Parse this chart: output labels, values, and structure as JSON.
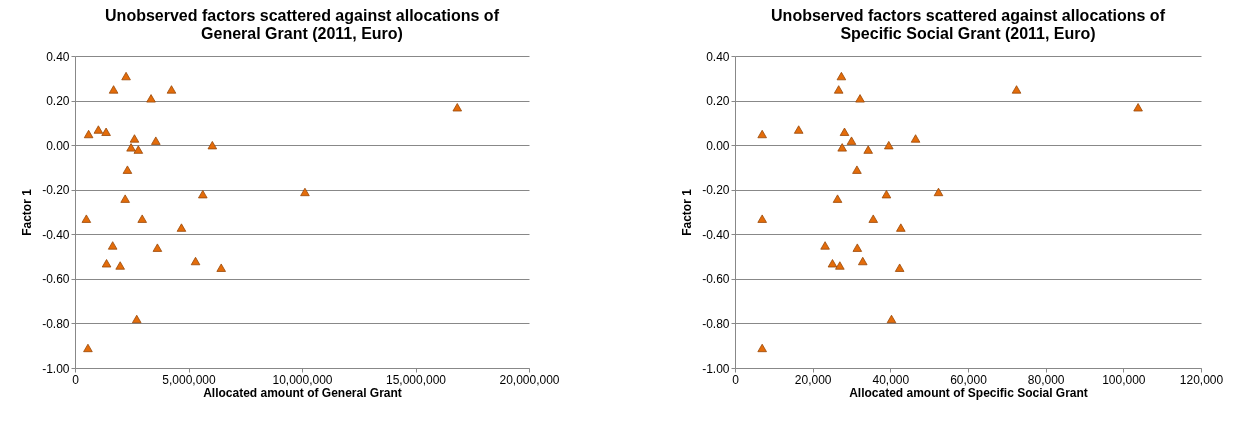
{
  "chart_data": [
    {
      "type": "scatter",
      "title": "Unobserved factors scattered against allocations of General Grant (2011, Euro)",
      "xlabel": "Allocated amount of General Grant",
      "ylabel": "Factor 1",
      "marker": "triangle",
      "grid": "y",
      "xlim": [
        0,
        20000000
      ],
      "xticks": [
        0,
        {
          "value": 5000000,
          "label": "5,000,000"
        },
        {
          "value": 10000000,
          "label": "10,000,000"
        },
        {
          "value": 15000000,
          "label": "15,000,000"
        },
        {
          "value": 20000000,
          "label": "20,000,000"
        }
      ],
      "ylim": [
        -1,
        0.4
      ],
      "yticks": [
        {
          "value": -1,
          "label": "-1.00"
        },
        {
          "value": -0.8,
          "label": "-0.80"
        },
        {
          "value": -0.6,
          "label": "-0.60"
        },
        {
          "value": -0.4,
          "label": "-0.40"
        },
        {
          "value": -0.2,
          "label": "-0.20"
        },
        {
          "value": 0,
          "label": "0.00"
        },
        {
          "value": 0.2,
          "label": "0.20"
        },
        {
          "value": 0.4,
          "label": "0.40"
        }
      ],
      "series": [
        {
          "color": "#e46c0a",
          "x": [
            2250000,
            1700000,
            3350000,
            4250000,
            600000,
            1030000,
            1370000,
            2620000,
            3560000,
            2470000,
            2790000,
            6050000,
            2310000,
            5630000,
            10130000,
            2210000,
            500000,
            2960000,
            4690000,
            1660000,
            3630000,
            1390000,
            1990000,
            5310000,
            6440000,
            2720000,
            570000,
            16840000
          ],
          "values": [
            0.31,
            0.25,
            0.21,
            0.25,
            0.05,
            0.07,
            0.06,
            0.03,
            0.02,
            -0.01,
            -0.02,
            0.0,
            -0.11,
            -0.22,
            -0.21,
            -0.24,
            -0.33,
            -0.33,
            -0.37,
            -0.45,
            -0.46,
            -0.53,
            -0.54,
            -0.52,
            -0.55,
            -0.78,
            -0.91,
            0.17
          ]
        }
      ]
    },
    {
      "type": "scatter",
      "title": "Unobserved factors scattered against allocations of Specific Social Grant (2011, Euro)",
      "xlabel": "Allocated amount of Specific Social Grant",
      "ylabel": "Factor 1",
      "marker": "triangle",
      "grid": "y",
      "xlim": [
        0,
        120000
      ],
      "xticks": [
        0,
        {
          "value": 20000,
          "label": "20,000"
        },
        {
          "value": 40000,
          "label": "40,000"
        },
        {
          "value": 60000,
          "label": "60,000"
        },
        {
          "value": 80000,
          "label": "80,000"
        },
        {
          "value": 100000,
          "label": "100,000"
        },
        {
          "value": 120000,
          "label": "120,000"
        }
      ],
      "ylim": [
        -1,
        0.4
      ],
      "yticks": [
        {
          "value": -1,
          "label": "-1.00"
        },
        {
          "value": -0.8,
          "label": "-0.80"
        },
        {
          "value": -0.6,
          "label": "-0.60"
        },
        {
          "value": -0.4,
          "label": "-0.40"
        },
        {
          "value": -0.2,
          "label": "-0.20"
        },
        {
          "value": 0,
          "label": "0.00"
        },
        {
          "value": 0.2,
          "label": "0.20"
        },
        {
          "value": 0.4,
          "label": "0.40"
        }
      ],
      "series": [
        {
          "color": "#e46c0a",
          "x": [
            27400,
            26700,
            32200,
            7000,
            16400,
            28200,
            30000,
            46500,
            27600,
            34300,
            39600,
            31400,
            39000,
            52400,
            26400,
            7000,
            35600,
            42700,
            23200,
            31500,
            25100,
            27000,
            32900,
            42400,
            40300,
            7000,
            72500,
            103800
          ],
          "values": [
            0.31,
            0.25,
            0.21,
            0.05,
            0.07,
            0.06,
            0.02,
            0.03,
            -0.01,
            -0.02,
            0.0,
            -0.11,
            -0.22,
            -0.21,
            -0.24,
            -0.33,
            -0.33,
            -0.37,
            -0.45,
            -0.46,
            -0.53,
            -0.54,
            -0.52,
            -0.55,
            -0.78,
            -0.91,
            0.25,
            0.17
          ]
        }
      ]
    }
  ]
}
